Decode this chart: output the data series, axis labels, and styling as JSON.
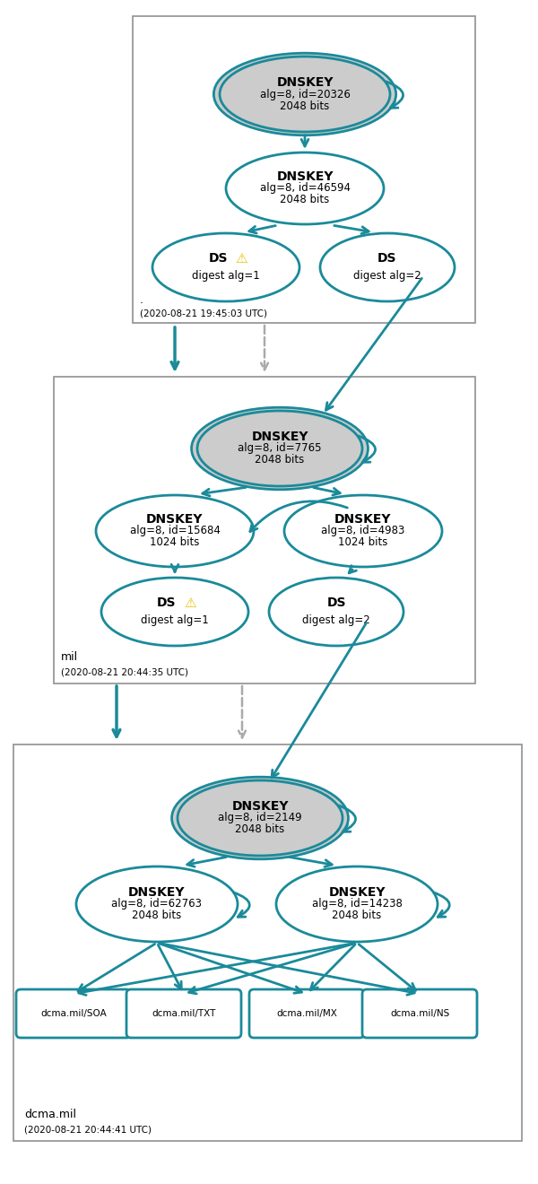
{
  "teal": "#1a8a9a",
  "gray_fill": "#cccccc",
  "white_fill": "#ffffff",
  "bg": "#ffffff",
  "box_edge": "#999999",
  "dashed_color": "#aaaaaa",
  "text_color": "#000000",
  "warn_color": "#e8c000",
  "box1_label": ".",
  "box1_time": "(2020-08-21 19:45:03 UTC)",
  "box2_label": "mil",
  "box2_time": "(2020-08-21 20:44:35 UTC)",
  "box3_label": "dcma.mil",
  "box3_time": "(2020-08-21 20:44:41 UTC)",
  "s1_ksk_line1": "DNSKEY",
  "s1_ksk_line2": "alg=8, id=20326",
  "s1_ksk_line3": "2048 bits",
  "s1_zsk_line1": "DNSKEY",
  "s1_zsk_line2": "alg=8, id=46594",
  "s1_zsk_line3": "2048 bits",
  "s1_ds1_line1": "DS",
  "s1_ds1_line2": "digest alg=1",
  "s1_ds2_line1": "DS",
  "s1_ds2_line2": "digest alg=2",
  "s2_ksk_line1": "DNSKEY",
  "s2_ksk_line2": "alg=8, id=7765",
  "s2_ksk_line3": "2048 bits",
  "s2_zsk1_line1": "DNSKEY",
  "s2_zsk1_line2": "alg=8, id=15684",
  "s2_zsk1_line3": "1024 bits",
  "s2_zsk2_line1": "DNSKEY",
  "s2_zsk2_line2": "alg=8, id=4983",
  "s2_zsk2_line3": "1024 bits",
  "s2_ds1_line1": "DS",
  "s2_ds1_line2": "digest alg=1",
  "s2_ds2_line1": "DS",
  "s2_ds2_line2": "digest alg=2",
  "s3_ksk_line1": "DNSKEY",
  "s3_ksk_line2": "alg=8, id=2149",
  "s3_ksk_line3": "2048 bits",
  "s3_zsk1_line1": "DNSKEY",
  "s3_zsk1_line2": "alg=8, id=62763",
  "s3_zsk1_line3": "2048 bits",
  "s3_zsk2_line1": "DNSKEY",
  "s3_zsk2_line2": "alg=8, id=14238",
  "s3_zsk2_line3": "2048 bits",
  "rr_labels": [
    "dcma.mil/SOA",
    "dcma.mil/TXT",
    "dcma.mil/MX",
    "dcma.mil/NS"
  ]
}
